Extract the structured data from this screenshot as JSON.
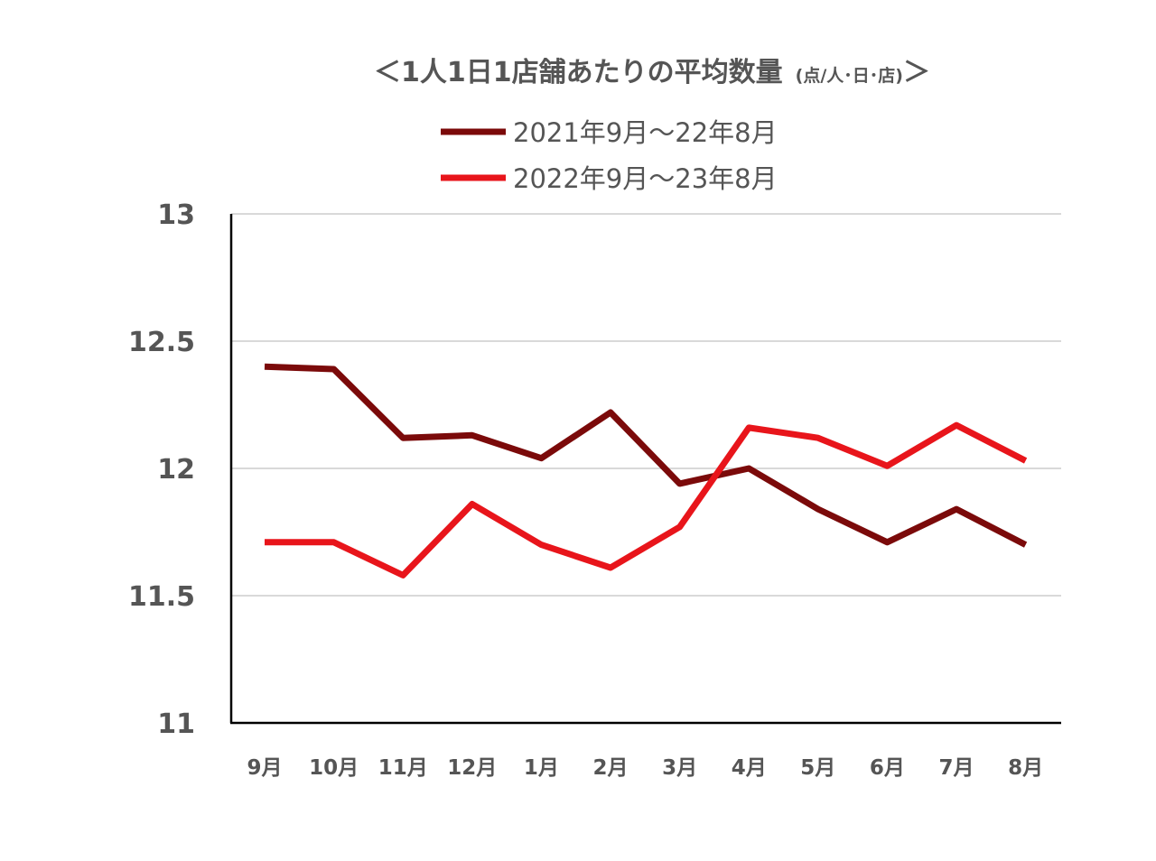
{
  "chart_data": {
    "type": "line",
    "title": {
      "open": "＜",
      "main": "1人1日1店舗あたりの平均数量",
      "unit": "(点/人･日･店)",
      "close": "＞"
    },
    "categories": [
      "9月",
      "10月",
      "11月",
      "12月",
      "1月",
      "2月",
      "3月",
      "4月",
      "5月",
      "6月",
      "7月",
      "8月"
    ],
    "series": [
      {
        "name": "2021年9月～22年8月",
        "color": "#7b0a0a",
        "values": [
          12.4,
          12.39,
          12.12,
          12.13,
          12.04,
          12.22,
          11.94,
          12.0,
          11.84,
          11.71,
          11.84,
          11.7
        ]
      },
      {
        "name": "2022年9月～23年8月",
        "color": "#e8151b",
        "values": [
          11.71,
          11.71,
          11.58,
          11.86,
          11.7,
          11.61,
          11.77,
          12.16,
          12.12,
          12.01,
          12.17,
          12.03
        ]
      }
    ],
    "y_ticks": [
      "11",
      "11.5",
      "12",
      "12.5",
      "13"
    ],
    "ylim": [
      11,
      13
    ],
    "grid": true,
    "legend_position": "top"
  }
}
